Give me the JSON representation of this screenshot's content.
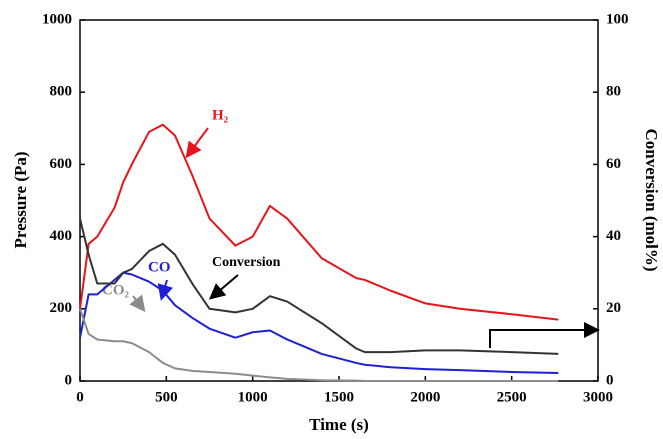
{
  "chart_data": {
    "type": "line",
    "x_label": "Time (s)",
    "y_label": "Pressure (Pa)",
    "y2_label": "Conversion (mol%)",
    "x": [
      0,
      50,
      100,
      200,
      250,
      300,
      400,
      480,
      550,
      650,
      750,
      900,
      1000,
      1100,
      1200,
      1400,
      1600,
      1650,
      1800,
      2000,
      2200,
      2500,
      2770
    ],
    "series": [
      {
        "name": "H₂",
        "color": "#e8141b",
        "values": [
          200,
          380,
          400,
          480,
          550,
          600,
          690,
          710,
          680,
          570,
          450,
          375,
          400,
          485,
          450,
          340,
          285,
          280,
          250,
          215,
          200,
          185,
          170
        ]
      },
      {
        "name": "CO",
        "color": "#1f1fd8",
        "values": [
          120,
          240,
          240,
          280,
          300,
          295,
          275,
          250,
          210,
          175,
          145,
          120,
          135,
          140,
          115,
          75,
          50,
          45,
          38,
          33,
          30,
          25,
          22
        ]
      },
      {
        "name": "CO₂",
        "color": "#8c8c8c",
        "values": [
          200,
          130,
          115,
          110,
          110,
          105,
          80,
          50,
          35,
          28,
          25,
          20,
          15,
          10,
          6,
          2,
          1,
          0,
          0,
          0,
          0,
          0,
          0
        ]
      },
      {
        "name": "Conversion",
        "color": "#333333",
        "axis": "y2",
        "values": [
          45,
          35,
          27,
          27,
          30,
          31,
          36,
          38,
          35,
          27,
          20,
          19,
          20,
          23.5,
          22,
          16,
          9,
          8,
          8,
          8.5,
          8.5,
          8,
          7.5
        ]
      }
    ],
    "xlim": [
      0,
      3000
    ],
    "xticks": [
      0,
      500,
      1000,
      1500,
      2000,
      2500,
      3000
    ],
    "ylim": [
      0,
      1000
    ],
    "yticks": [
      0,
      200,
      400,
      600,
      800,
      1000
    ],
    "y2lim": [
      0,
      100
    ],
    "y2ticks": [
      0,
      20,
      40,
      60,
      80,
      100
    ]
  }
}
